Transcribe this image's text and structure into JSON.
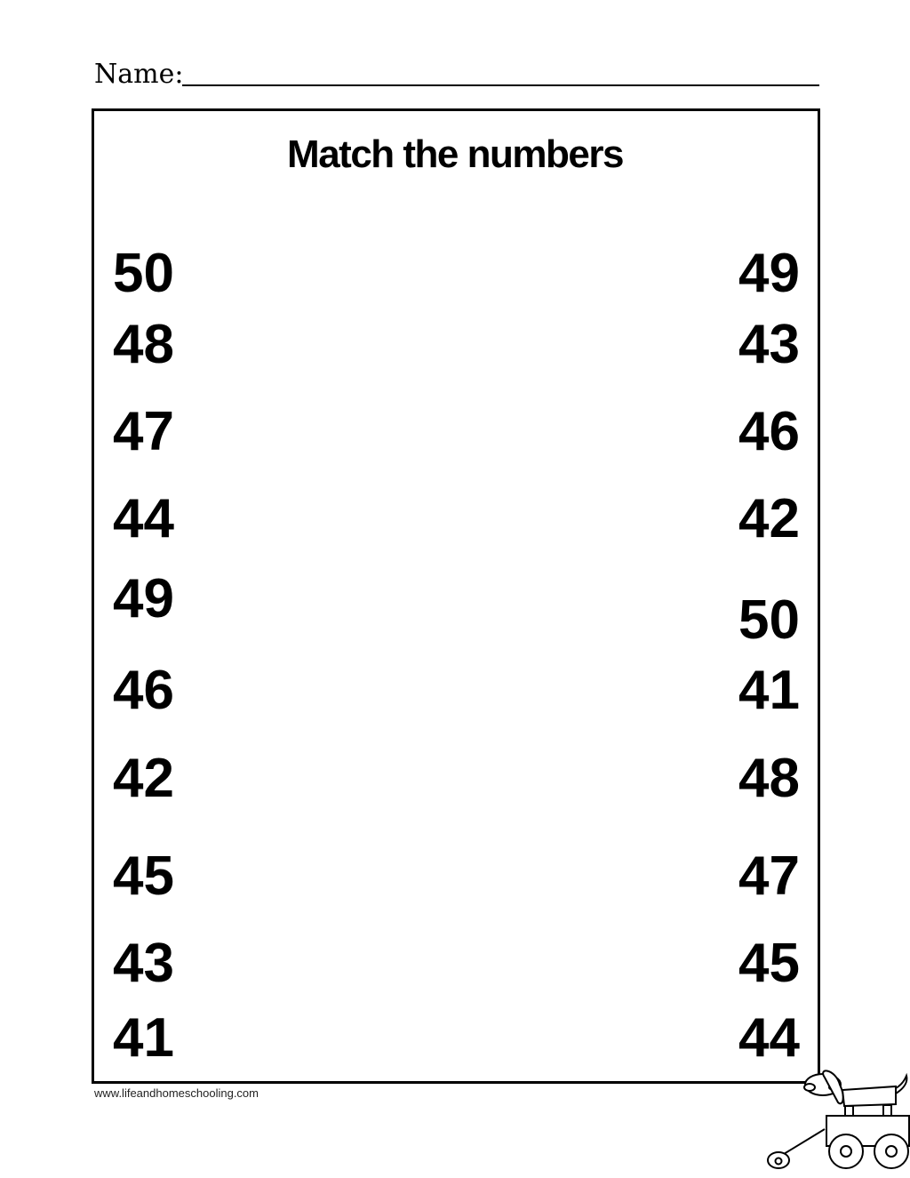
{
  "header": {
    "name_label": "Name:"
  },
  "title": "Match the numbers",
  "left_column": [
    "50",
    "48",
    "47",
    "44",
    "49",
    "46",
    "42",
    "45",
    "43",
    "41"
  ],
  "right_column": [
    "49",
    "43",
    "46",
    "42",
    "50",
    "41",
    "48",
    "47",
    "45",
    "44"
  ],
  "footer": {
    "website": "www.lifeandhomeschooling.com"
  },
  "illustration": {
    "icon": "dog-in-wagon-icon"
  }
}
